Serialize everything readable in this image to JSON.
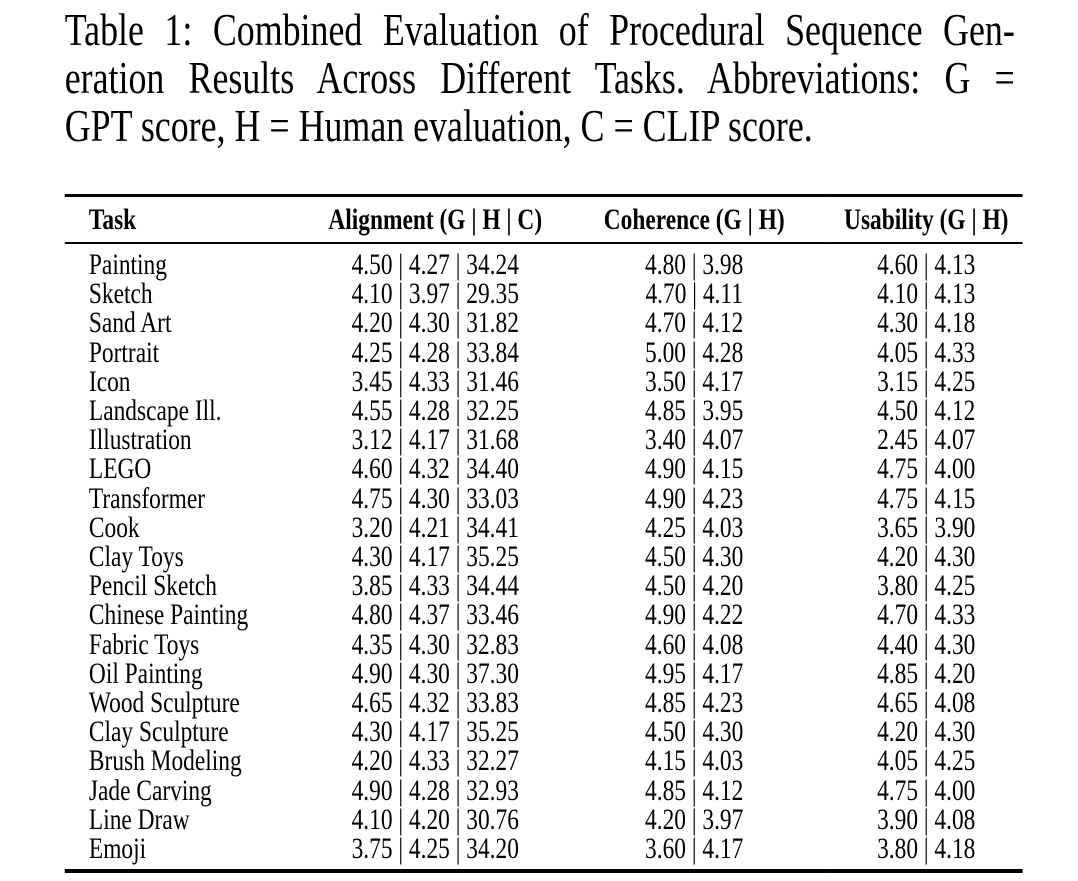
{
  "caption": {
    "lines": [
      "Table 1: Combined Evaluation of Procedural Sequence Gen-",
      "eration Results Across Different Tasks. Abbreviations: G =",
      "GPT score, H = Human evaluation, C = CLIP score."
    ]
  },
  "table": {
    "separator": "|",
    "columns": [
      "Task",
      "Alignment (G | H | C)",
      "Coherence (G | H)",
      "Usability (G | H)"
    ],
    "rows": [
      {
        "task": "Painting",
        "alignment": [
          "4.50",
          "4.27",
          "34.24"
        ],
        "coherence": [
          "4.80",
          "3.98"
        ],
        "usability": [
          "4.60",
          "4.13"
        ]
      },
      {
        "task": "Sketch",
        "alignment": [
          "4.10",
          "3.97",
          "29.35"
        ],
        "coherence": [
          "4.70",
          "4.11"
        ],
        "usability": [
          "4.10",
          "4.13"
        ]
      },
      {
        "task": "Sand Art",
        "alignment": [
          "4.20",
          "4.30",
          "31.82"
        ],
        "coherence": [
          "4.70",
          "4.12"
        ],
        "usability": [
          "4.30",
          "4.18"
        ]
      },
      {
        "task": "Portrait",
        "alignment": [
          "4.25",
          "4.28",
          "33.84"
        ],
        "coherence": [
          "5.00",
          "4.28"
        ],
        "usability": [
          "4.05",
          "4.33"
        ]
      },
      {
        "task": "Icon",
        "alignment": [
          "3.45",
          "4.33",
          "31.46"
        ],
        "coherence": [
          "3.50",
          "4.17"
        ],
        "usability": [
          "3.15",
          "4.25"
        ]
      },
      {
        "task": "Landscape Ill.",
        "alignment": [
          "4.55",
          "4.28",
          "32.25"
        ],
        "coherence": [
          "4.85",
          "3.95"
        ],
        "usability": [
          "4.50",
          "4.12"
        ]
      },
      {
        "task": "Illustration",
        "alignment": [
          "3.12",
          "4.17",
          "31.68"
        ],
        "coherence": [
          "3.40",
          "4.07"
        ],
        "usability": [
          "2.45",
          "4.07"
        ]
      },
      {
        "task": "LEGO",
        "alignment": [
          "4.60",
          "4.32",
          "34.40"
        ],
        "coherence": [
          "4.90",
          "4.15"
        ],
        "usability": [
          "4.75",
          "4.00"
        ]
      },
      {
        "task": "Transformer",
        "alignment": [
          "4.75",
          "4.30",
          "33.03"
        ],
        "coherence": [
          "4.90",
          "4.23"
        ],
        "usability": [
          "4.75",
          "4.15"
        ]
      },
      {
        "task": "Cook",
        "alignment": [
          "3.20",
          "4.21",
          "34.41"
        ],
        "coherence": [
          "4.25",
          "4.03"
        ],
        "usability": [
          "3.65",
          "3.90"
        ]
      },
      {
        "task": "Clay Toys",
        "alignment": [
          "4.30",
          "4.17",
          "35.25"
        ],
        "coherence": [
          "4.50",
          "4.30"
        ],
        "usability": [
          "4.20",
          "4.30"
        ]
      },
      {
        "task": "Pencil Sketch",
        "alignment": [
          "3.85",
          "4.33",
          "34.44"
        ],
        "coherence": [
          "4.50",
          "4.20"
        ],
        "usability": [
          "3.80",
          "4.25"
        ]
      },
      {
        "task": "Chinese Painting",
        "alignment": [
          "4.80",
          "4.37",
          "33.46"
        ],
        "coherence": [
          "4.90",
          "4.22"
        ],
        "usability": [
          "4.70",
          "4.33"
        ]
      },
      {
        "task": "Fabric Toys",
        "alignment": [
          "4.35",
          "4.30",
          "32.83"
        ],
        "coherence": [
          "4.60",
          "4.08"
        ],
        "usability": [
          "4.40",
          "4.30"
        ]
      },
      {
        "task": "Oil Painting",
        "alignment": [
          "4.90",
          "4.30",
          "37.30"
        ],
        "coherence": [
          "4.95",
          "4.17"
        ],
        "usability": [
          "4.85",
          "4.20"
        ]
      },
      {
        "task": "Wood Sculpture",
        "alignment": [
          "4.65",
          "4.32",
          "33.83"
        ],
        "coherence": [
          "4.85",
          "4.23"
        ],
        "usability": [
          "4.65",
          "4.08"
        ]
      },
      {
        "task": "Clay Sculpture",
        "alignment": [
          "4.30",
          "4.17",
          "35.25"
        ],
        "coherence": [
          "4.50",
          "4.30"
        ],
        "usability": [
          "4.20",
          "4.30"
        ]
      },
      {
        "task": "Brush Modeling",
        "alignment": [
          "4.20",
          "4.33",
          "32.27"
        ],
        "coherence": [
          "4.15",
          "4.03"
        ],
        "usability": [
          "4.05",
          "4.25"
        ]
      },
      {
        "task": "Jade Carving",
        "alignment": [
          "4.90",
          "4.28",
          "32.93"
        ],
        "coherence": [
          "4.85",
          "4.12"
        ],
        "usability": [
          "4.75",
          "4.00"
        ]
      },
      {
        "task": "Line Draw",
        "alignment": [
          "4.10",
          "4.20",
          "30.76"
        ],
        "coherence": [
          "4.20",
          "3.97"
        ],
        "usability": [
          "3.90",
          "4.08"
        ]
      },
      {
        "task": "Emoji",
        "alignment": [
          "3.75",
          "4.25",
          "34.20"
        ],
        "coherence": [
          "3.60",
          "4.17"
        ],
        "usability": [
          "3.80",
          "4.18"
        ]
      }
    ],
    "colors": {
      "text": "#000000",
      "background": "#ffffff",
      "rule": "#000000"
    }
  }
}
